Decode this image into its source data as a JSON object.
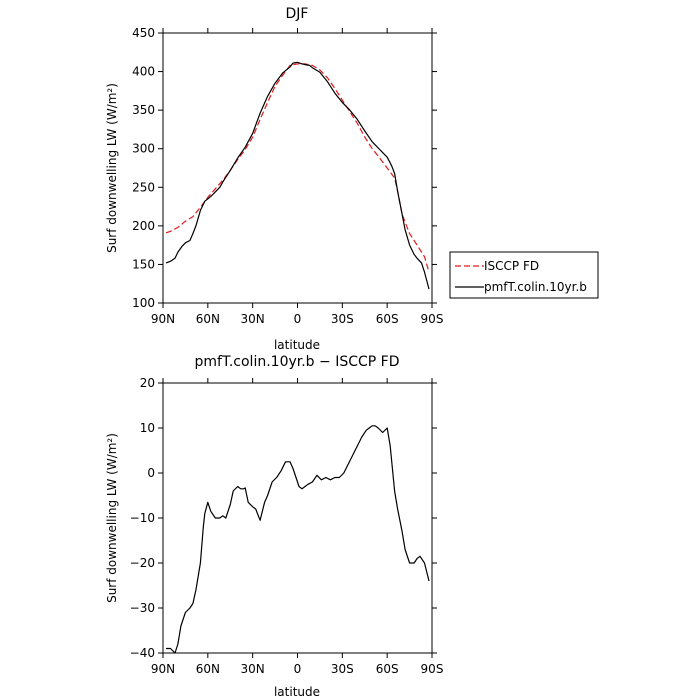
{
  "chart_data": [
    {
      "type": "line",
      "title": "DJF",
      "xlabel": "latitude",
      "ylabel": "Surf downwelling LW (W/m²)",
      "x_domain": [
        -90,
        90
      ],
      "xticks": [
        -90,
        -60,
        -30,
        0,
        30,
        60,
        90
      ],
      "xtick_labels": [
        "90N",
        "60N",
        "30N",
        "0",
        "30S",
        "60S",
        "90S"
      ],
      "ylim": [
        100,
        450
      ],
      "yticks": [
        100,
        150,
        200,
        250,
        300,
        350,
        400,
        450
      ],
      "ytick_labels": [
        "100",
        "150",
        "200",
        "250",
        "300",
        "350",
        "400",
        "450"
      ],
      "grid": false,
      "legend_position": "right",
      "series": [
        {
          "name": "ISCCP FD",
          "color": "#e31a1c",
          "dashed": true,
          "x": [
            -88,
            -85,
            -80,
            -75,
            -70,
            -65,
            -60,
            -55,
            -50,
            -45,
            -40,
            -35,
            -30,
            -25,
            -20,
            -15,
            -10,
            -5,
            0,
            5,
            10,
            15,
            20,
            25,
            30,
            35,
            40,
            45,
            50,
            55,
            60,
            65,
            67,
            70,
            75,
            80,
            85,
            88
          ],
          "y": [
            191,
            193,
            198,
            206,
            212,
            224,
            237,
            248,
            259,
            272,
            286,
            299,
            315,
            338,
            360,
            381,
            395,
            408,
            410,
            410,
            408,
            402,
            392,
            378,
            363,
            348,
            333,
            315,
            300,
            288,
            275,
            262,
            245,
            215,
            190,
            175,
            160,
            140
          ]
        },
        {
          "name": "pmfT.colin.10yr.b",
          "color": "#000000",
          "dashed": false,
          "x": [
            -88,
            -85,
            -82,
            -80,
            -77,
            -75,
            -72,
            -70,
            -68,
            -65,
            -62,
            -60,
            -57,
            -55,
            -52,
            -50,
            -45,
            -40,
            -35,
            -30,
            -25,
            -20,
            -15,
            -10,
            -5,
            -3,
            0,
            3,
            5,
            8,
            10,
            15,
            20,
            25,
            30,
            35,
            40,
            45,
            50,
            55,
            60,
            63,
            65,
            67,
            70,
            72,
            75,
            78,
            80,
            83,
            85,
            88
          ],
          "y": [
            152,
            154,
            158,
            166,
            174,
            178,
            181,
            190,
            200,
            220,
            232,
            235,
            240,
            244,
            250,
            257,
            272,
            288,
            302,
            320,
            346,
            368,
            385,
            398,
            406,
            411,
            412,
            410,
            409,
            408,
            405,
            399,
            387,
            372,
            360,
            350,
            338,
            323,
            309,
            299,
            289,
            278,
            268,
            245,
            215,
            195,
            175,
            163,
            158,
            152,
            140,
            118
          ]
        }
      ]
    },
    {
      "type": "line",
      "title": "pmfT.colin.10yr.b − ISCCP FD",
      "xlabel": "latitude",
      "ylabel": "Surf downwelling LW (W/m²)",
      "x_domain": [
        -90,
        90
      ],
      "xticks": [
        -90,
        -60,
        -30,
        0,
        30,
        60,
        90
      ],
      "xtick_labels": [
        "90N",
        "60N",
        "30N",
        "0",
        "30S",
        "60S",
        "90S"
      ],
      "ylim": [
        -40,
        20
      ],
      "yticks": [
        -40,
        -30,
        -20,
        -10,
        0,
        10,
        20
      ],
      "ytick_labels": [
        "−40",
        "−30",
        "−20",
        "−10",
        "0",
        "10",
        "20"
      ],
      "grid": false,
      "series": [
        {
          "color": "#000000",
          "dashed": false,
          "x": [
            -88,
            -85,
            -82,
            -80,
            -78,
            -75,
            -72,
            -70,
            -68,
            -65,
            -63,
            -62,
            -60,
            -58,
            -55,
            -52,
            -50,
            -48,
            -45,
            -43,
            -40,
            -38,
            -36,
            -35,
            -33,
            -30,
            -28,
            -25,
            -22,
            -20,
            -17,
            -14,
            -11,
            -8,
            -5,
            -3,
            -1,
            1,
            3,
            5,
            7,
            10,
            13,
            16,
            19,
            22,
            25,
            28,
            31,
            34,
            37,
            40,
            43,
            46,
            48,
            50,
            52,
            54,
            57,
            60,
            62,
            65,
            67,
            70,
            72,
            75,
            78,
            80,
            82,
            85,
            88
          ],
          "y": [
            -39,
            -39,
            -40,
            -38,
            -34,
            -31,
            -30,
            -29,
            -26,
            -20,
            -12,
            -9,
            -6.5,
            -8.5,
            -10,
            -10,
            -9.5,
            -10,
            -7,
            -4,
            -3,
            -3.5,
            -3.5,
            -3.3,
            -6.5,
            -7.5,
            -8,
            -10.5,
            -6.5,
            -5,
            -2,
            -1,
            0.5,
            2.5,
            2.5,
            1,
            -1,
            -3,
            -3.5,
            -3,
            -2.5,
            -2,
            -0.5,
            -1.5,
            -1,
            -1.5,
            -1,
            -1,
            0,
            2,
            4,
            6,
            8,
            9.5,
            10,
            10.5,
            10.5,
            10,
            9,
            10,
            6,
            -4,
            -8,
            -13,
            -17,
            -20,
            -20,
            -19,
            -18.5,
            -20,
            -24
          ]
        }
      ]
    }
  ]
}
